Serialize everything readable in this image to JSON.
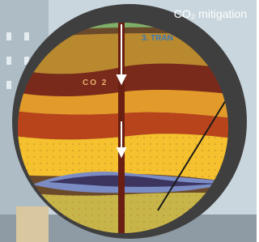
{
  "badge": {
    "label": "CO₂ mitigation"
  },
  "diagram": {
    "gas_label": "CO 2",
    "layer_label": "3. TRAN"
  }
}
